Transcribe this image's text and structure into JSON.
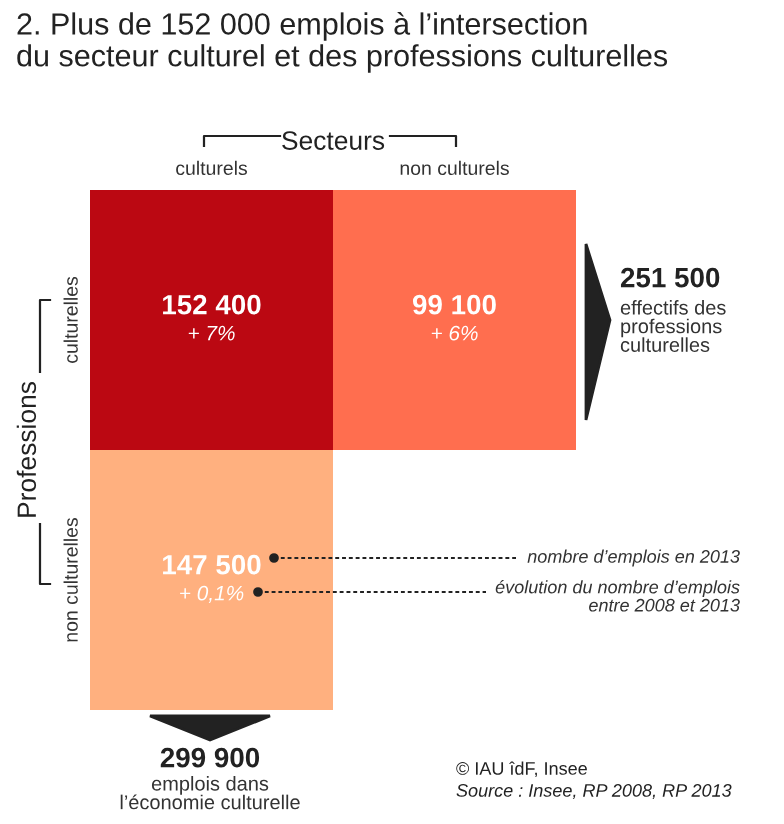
{
  "chart_data": {
    "type": "heatmap",
    "title": "2. Plus de 152 000 emplois à l’intersection\ndu secteur culturel et des professions culturelles",
    "xlabel": "Secteurs",
    "ylabel": "Professions",
    "categories": [
      "culturels",
      "non culturels"
    ],
    "y_categories": [
      "culturelles",
      "non culturelles"
    ],
    "cells": [
      [
        152400,
        99100
      ],
      [
        147500,
        null
      ]
    ],
    "cell_labels": [
      [
        "152 400",
        "99 100"
      ],
      [
        "147 500",
        null
      ]
    ],
    "colors": [
      [
        "#bb0812",
        "#ff6e4f"
      ],
      [
        "#ffb07f",
        null
      ]
    ],
    "annotations": [
      "251 500\neffectifs des\nprofessions\nculturelles",
      "299 900\nemplois dans\nl’économie culturelle",
      "nombre d’emplois en 2013",
      "évolution du nombre d’emplois\nentre 2008 et 2013",
      "© IAU îdF, Insee",
      "Source : Insee, RP 2008, RP 2013",
      "+ 7%",
      "+ 6%",
      "+ 0,1%"
    ]
  }
}
